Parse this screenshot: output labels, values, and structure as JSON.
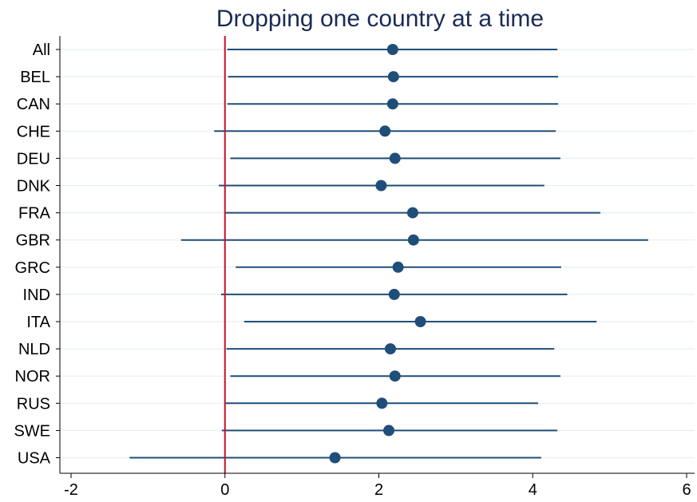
{
  "chart_data": {
    "type": "scatter",
    "subtype": "coefficient-plot",
    "title": "Dropping one country at a time",
    "categories": [
      "All",
      "BEL",
      "CAN",
      "CHE",
      "DEU",
      "DNK",
      "FRA",
      "GBR",
      "GRC",
      "IND",
      "ITA",
      "NLD",
      "NOR",
      "RUS",
      "SWE",
      "USA"
    ],
    "estimates": [
      2.18,
      2.19,
      2.18,
      2.08,
      2.21,
      2.03,
      2.44,
      2.45,
      2.25,
      2.2,
      2.54,
      2.15,
      2.21,
      2.04,
      2.13,
      1.43
    ],
    "ci_low": [
      0.03,
      0.04,
      0.03,
      -0.14,
      0.07,
      -0.08,
      0.0,
      -0.57,
      0.14,
      -0.05,
      0.25,
      0.02,
      0.07,
      0.01,
      -0.04,
      -1.24
    ],
    "ci_high": [
      4.32,
      4.33,
      4.33,
      4.3,
      4.36,
      4.15,
      4.88,
      5.5,
      4.37,
      4.45,
      4.83,
      4.28,
      4.36,
      4.07,
      4.32,
      4.11
    ],
    "xlim": [
      -2,
      6
    ],
    "xticks": [
      -2,
      0,
      2,
      4,
      6
    ],
    "reference_line_x": 0,
    "grid": "horizontal",
    "xlabel": "",
    "ylabel": "",
    "colors": {
      "marker": "#1f4e79",
      "ci_line": "#1f4e79",
      "reference_line": "#c8102e",
      "grid": "#e6eef2",
      "axis": "#000000",
      "title": "#1a2b56"
    }
  }
}
